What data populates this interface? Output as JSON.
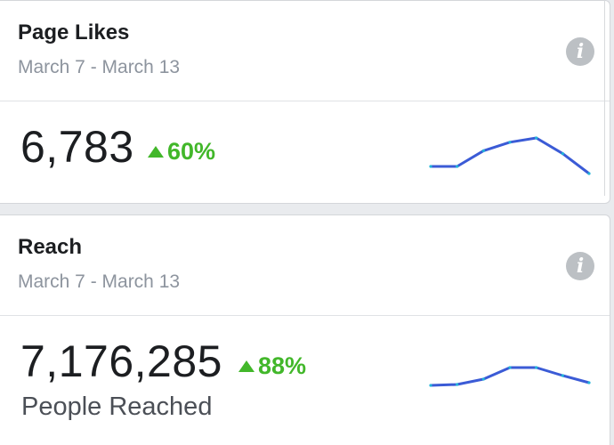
{
  "cards": [
    {
      "title": "Page Likes",
      "date_range": "March 7 - March 13",
      "value": "6,783",
      "change": "60%",
      "caption": "",
      "trend": [
        0,
        0,
        0.55,
        0.85,
        1.0,
        0.45,
        -0.25
      ]
    },
    {
      "title": "Reach",
      "date_range": "March 7 - March 13",
      "value": "7,176,285",
      "change": "88%",
      "caption": "People Reached",
      "trend": [
        0,
        0.05,
        0.35,
        1.0,
        1.0,
        0.55,
        0.15
      ]
    }
  ],
  "info_icon": "info-icon",
  "colors": {
    "positive": "#42b72a",
    "sparkline": "#3b5bd6",
    "sparkline_point": "#21b4d8"
  }
}
